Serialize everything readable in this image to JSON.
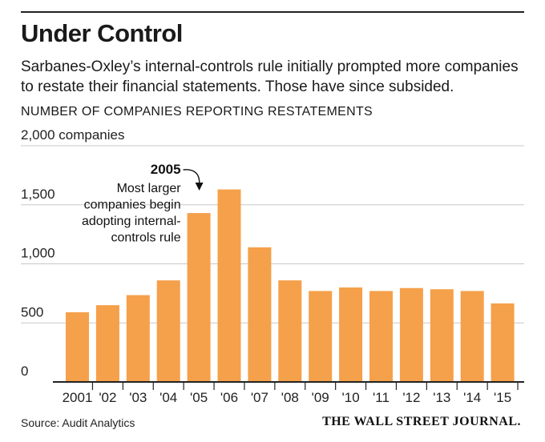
{
  "header": {
    "title": "Under Control",
    "subtitle": "Sarbanes-Oxley’s internal-controls rule initially prompted more companies to restate their financial statements. Those have since subsided.",
    "chart_heading": "NUMBER OF COMPANIES REPORTING RESTATEMENTS"
  },
  "footer": {
    "source": "Source: Audit Analytics",
    "publisher": "THE WALL STREET JOURNAL."
  },
  "colors": {
    "bar": "#F5A04A",
    "grid": "#c8c8c8",
    "rule": "#222222"
  },
  "chart_data": {
    "type": "bar",
    "title": "NUMBER OF COMPANIES REPORTING RESTATEMENTS",
    "xlabel": "",
    "ylabel": "companies",
    "categories": [
      "2001",
      "'02",
      "'03",
      "'04",
      "'05",
      "'06",
      "'07",
      "'08",
      "'09",
      "'10",
      "'11",
      "'12",
      "'13",
      "'14",
      "'15"
    ],
    "values": [
      590,
      650,
      735,
      860,
      1430,
      1630,
      1140,
      860,
      770,
      800,
      770,
      795,
      785,
      770,
      665
    ],
    "ylim": [
      0,
      2000
    ],
    "yticks": [
      0,
      500,
      1000,
      1500,
      2000
    ],
    "ytick_labels": [
      "0",
      "500",
      "1,000",
      "1,500",
      "2,000 companies"
    ],
    "grid": true,
    "annotation": {
      "category": "'05",
      "year": "2005",
      "lines": [
        "Most larger",
        "companies begin",
        "adopting internal-",
        "controls rule"
      ]
    }
  }
}
